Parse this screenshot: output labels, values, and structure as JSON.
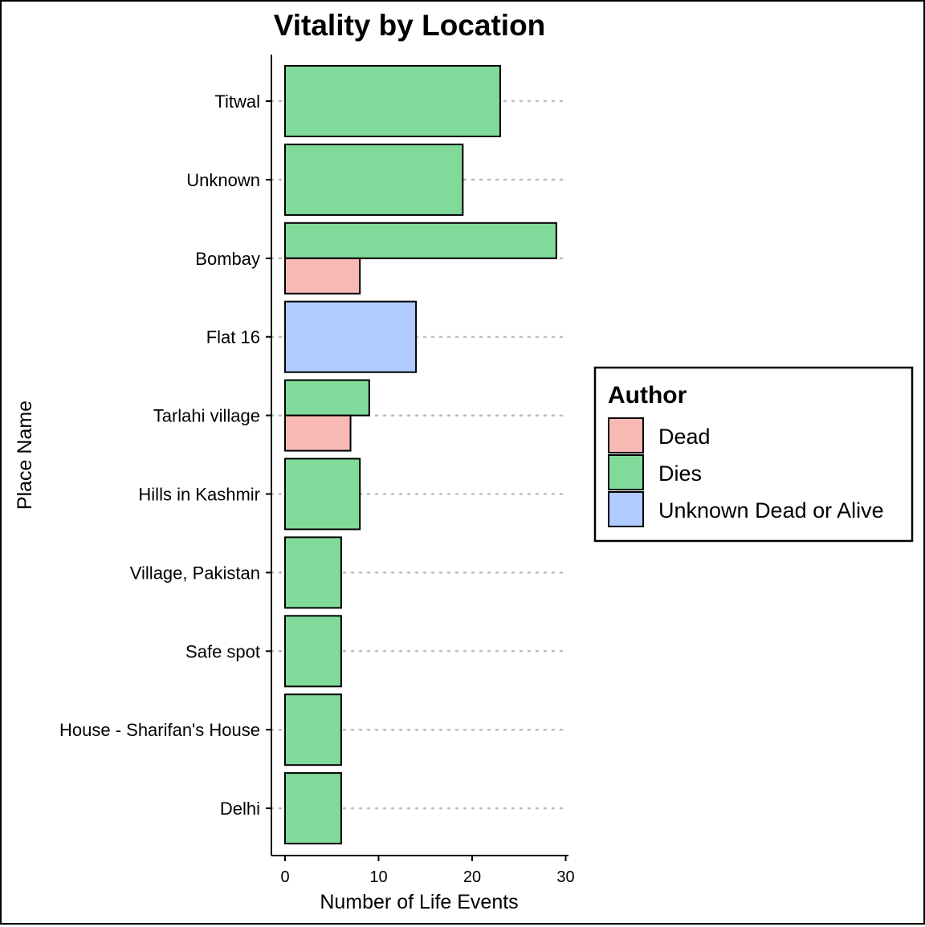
{
  "chart_data": {
    "type": "bar",
    "orientation": "horizontal",
    "title": "Vitality by Location",
    "xlabel": "Number of Life Events",
    "ylabel": "Place Name",
    "xlim": [
      0,
      30
    ],
    "xticks": [
      0,
      10,
      20,
      30
    ],
    "grid": "dotted horizontal lines at categories",
    "categories": [
      "Titwal",
      "Unknown",
      "Bombay",
      "Flat 16",
      "Tarlahi village",
      "Hills in Kashmir",
      "Village, Pakistan",
      "Safe spot",
      "House - Sharifan's House",
      "Delhi"
    ],
    "series": [
      {
        "name": "Dead",
        "color": "#F8B9B5",
        "values": [
          null,
          null,
          8,
          null,
          7,
          null,
          null,
          null,
          null,
          null
        ]
      },
      {
        "name": "Dies",
        "color": "#80DB9A",
        "values": [
          23,
          19,
          29,
          null,
          9,
          8,
          6,
          6,
          6,
          6
        ]
      },
      {
        "name": "Unknown Dead or Alive",
        "color": "#AFCBFF",
        "values": [
          null,
          null,
          null,
          14,
          null,
          null,
          null,
          null,
          null,
          null
        ]
      }
    ],
    "legend": {
      "title": "Author",
      "placement": "right"
    }
  }
}
